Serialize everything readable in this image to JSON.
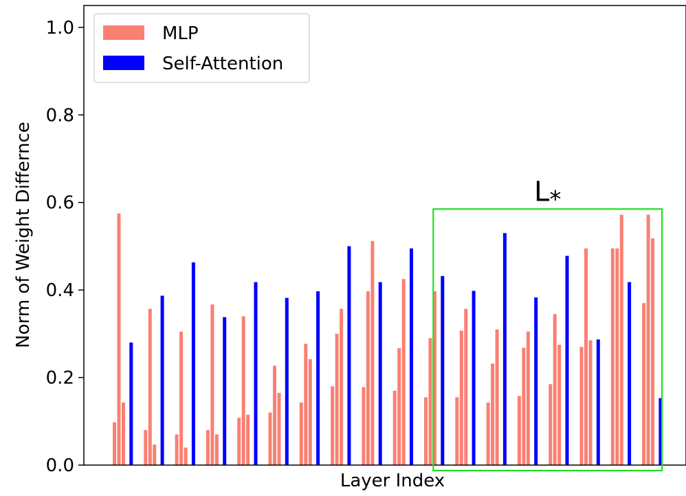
{
  "chart_data": {
    "type": "bar",
    "title": "",
    "xlabel": "Layer Index",
    "ylabel": "Norm of Weight Differnce",
    "ylim": [
      0,
      1.05
    ],
    "yticks": [
      "0.0",
      "0.2",
      "0.4",
      "0.6",
      "0.8",
      "1.0"
    ],
    "grid": false,
    "legend_position": "top-left",
    "series": [
      {
        "name": "MLP",
        "color": "#fa8072"
      },
      {
        "name": "Self-Attention",
        "color": "#0000ff"
      }
    ],
    "groups": [
      {
        "attn": null,
        "mlp": [
          0.098,
          0.575,
          0.143
        ]
      },
      {
        "attn": 0.28,
        "mlp": [
          0.08,
          0.357,
          0.047
        ]
      },
      {
        "attn": 0.387,
        "mlp": [
          0.07,
          0.305,
          0.04
        ]
      },
      {
        "attn": 0.463,
        "mlp": [
          0.08,
          0.367,
          0.07
        ]
      },
      {
        "attn": 0.338,
        "mlp": [
          0.108,
          0.34,
          0.115
        ]
      },
      {
        "attn": 0.418,
        "mlp": [
          0.12,
          0.227,
          0.165
        ]
      },
      {
        "attn": 0.382,
        "mlp": [
          0.143,
          0.277,
          0.242
        ]
      },
      {
        "attn": 0.397,
        "mlp": [
          0.18,
          0.3,
          0.357
        ]
      },
      {
        "attn": 0.5,
        "mlp": [
          0.178,
          0.397,
          0.512
        ]
      },
      {
        "attn": 0.418,
        "mlp": [
          0.17,
          0.267,
          0.425
        ]
      },
      {
        "attn": 0.495,
        "mlp": [
          0.155,
          0.29,
          0.397
        ]
      },
      {
        "attn": 0.432,
        "mlp": [
          0.155,
          0.307,
          0.357
        ]
      },
      {
        "attn": 0.398,
        "mlp": [
          0.143,
          0.232,
          0.31
        ]
      },
      {
        "attn": 0.53,
        "mlp": [
          0.158,
          0.268,
          0.305
        ]
      },
      {
        "attn": 0.383,
        "mlp": [
          0.185,
          0.345,
          0.275
        ]
      },
      {
        "attn": 0.478,
        "mlp": [
          0.27,
          0.495,
          0.285
        ]
      },
      {
        "attn": 0.287,
        "mlp": [
          0.495,
          0.495,
          0.572
        ]
      },
      {
        "attn": 0.418,
        "mlp": [
          0.37,
          0.572,
          0.518
        ]
      },
      {
        "attn": 0.153,
        "mlp": []
      }
    ],
    "annotations": [
      {
        "text": "L",
        "subscript": "*",
        "type": "highlight-box",
        "color": "#22dd22",
        "from_group": 11,
        "to_group": 17
      }
    ]
  }
}
